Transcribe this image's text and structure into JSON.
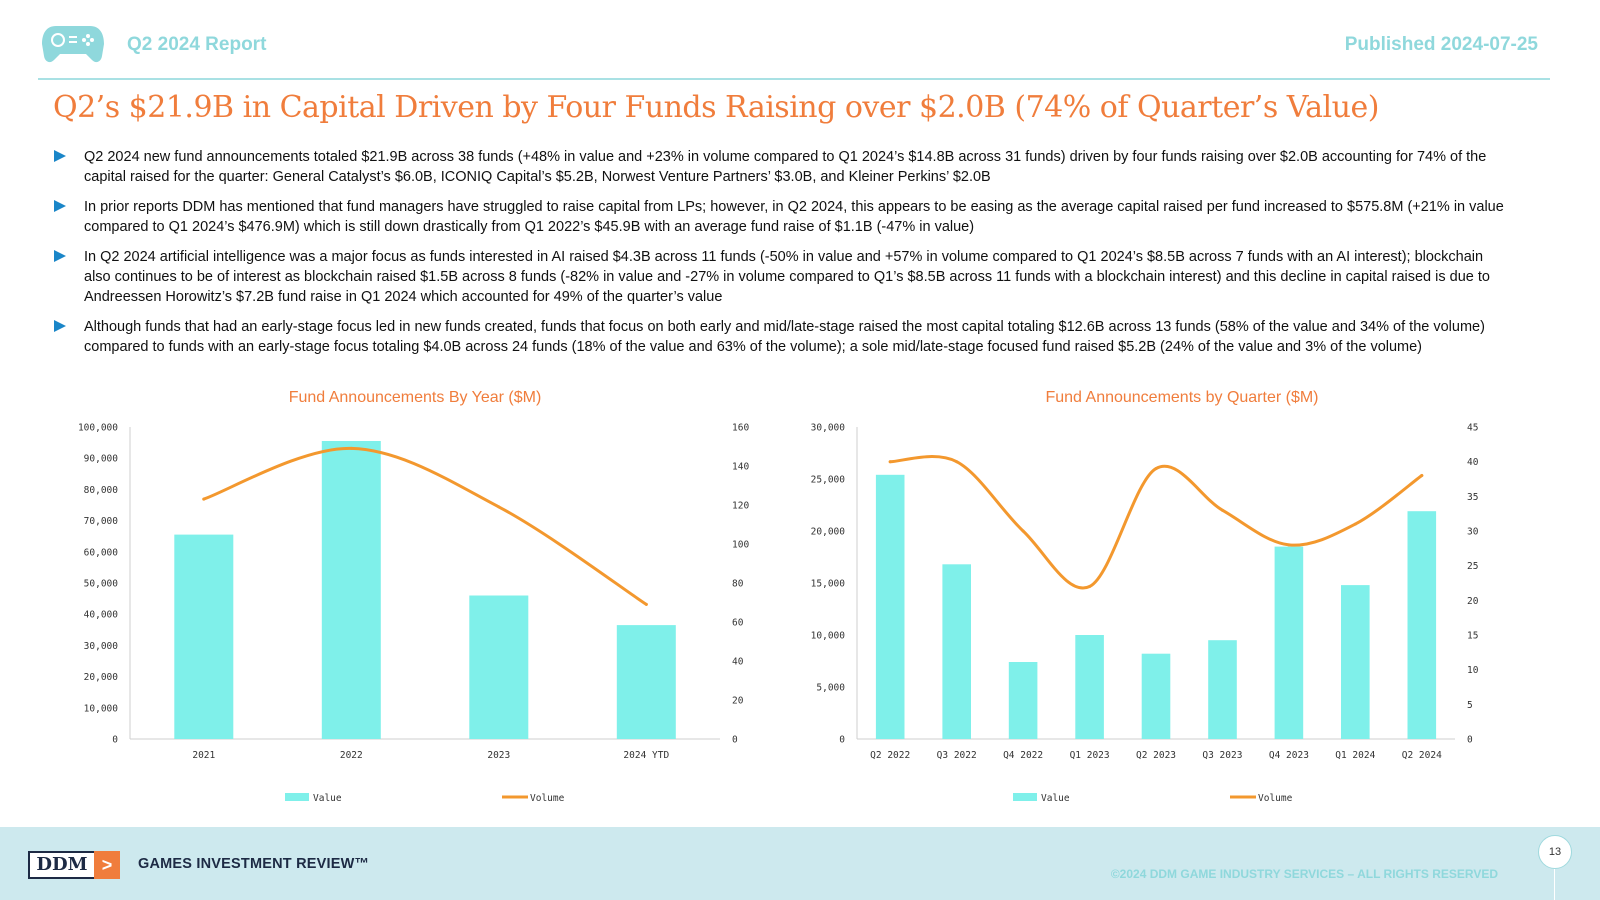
{
  "header": {
    "report_label": "Q2 2024 Report",
    "published": "Published 2024-07-25",
    "logo_icon": "gamepad-icon"
  },
  "title": "Q2’s $21.9B in Capital Driven by Four Funds Raising over $2.0B (74% of Quarter’s Value)",
  "bullets": [
    "Q2 2024 new fund announcements totaled $21.9B across 38 funds (+48% in value and +23% in volume compared to Q1 2024’s $14.8B across 31 funds) driven by four funds raising over $2.0B accounting for 74% of the capital raised for the quarter: General Catalyst’s $6.0B, ICONIQ Capital’s $5.2B, Norwest Venture Partners’ $3.0B, and Kleiner Perkins’ $2.0B",
    "In prior reports DDM has mentioned that fund managers have struggled to raise capital from LPs; however, in Q2 2024, this appears to be easing as the average capital raised per fund increased to $575.8M (+21% in value compared to Q1 2024’s $476.9M) which is still down drastically from Q1 2022’s $45.9B with an average fund raise of $1.1B (-47% in value)",
    "In Q2 2024 artificial intelligence was a major focus as funds interested in AI raised $4.3B across 11 funds (-50% in value and +57% in volume compared to Q1 2024’s $8.5B across 7 funds with an AI interest); blockchain also continues to be of interest as blockchain raised $1.5B across 8 funds (-82% in value and -27% in volume compared to Q1’s $8.5B across 11 funds with a blockchain interest) and this decline in capital raised is due to Andreessen Horowitz’s $7.2B fund raise in Q1 2024 which accounted for 49% of the quarter’s value",
    "Although funds that had an early-stage focus led in new funds created, funds that focus on both early and mid/late-stage raised the most capital totaling $12.6B across 13 funds (58% of the value and 34% of the volume) compared to funds with an early-stage focus totaling $4.0B across 24 funds (18% of the value and 63% of the volume); a sole mid/late-stage focused fund raised $5.2B (24% of the value and 3% of the volume)"
  ],
  "chart_data": [
    {
      "type": "bar",
      "title": "Fund Announcements By Year ($M)",
      "categories": [
        "2021",
        "2022",
        "2023",
        "2024 YTD"
      ],
      "series": [
        {
          "name": "Value",
          "type": "bar",
          "axis": "left",
          "color": "#7ff0ea",
          "values": [
            65500,
            95500,
            46000,
            36500
          ]
        },
        {
          "name": "Volume",
          "type": "line",
          "axis": "right",
          "color": "#f3982e",
          "values": [
            123,
            149,
            119,
            69
          ]
        }
      ],
      "y_left": {
        "min": 0,
        "max": 100000,
        "ticks": [
          "0",
          "10,000",
          "20,000",
          "30,000",
          "40,000",
          "50,000",
          "60,000",
          "70,000",
          "80,000",
          "90,000",
          "100,000"
        ]
      },
      "y_right": {
        "min": 0,
        "max": 160,
        "ticks": [
          "0",
          "20",
          "40",
          "60",
          "80",
          "100",
          "120",
          "140",
          "160"
        ]
      },
      "grid": false,
      "legend": "bottom"
    },
    {
      "type": "bar",
      "title": "Fund Announcements by Quarter ($M)",
      "categories": [
        "Q2 2022",
        "Q3 2022",
        "Q4 2022",
        "Q1 2023",
        "Q2 2023",
        "Q3 2023",
        "Q4 2023",
        "Q1 2024",
        "Q2 2024"
      ],
      "series": [
        {
          "name": "Value",
          "type": "bar",
          "axis": "left",
          "color": "#7ff0ea",
          "values": [
            25400,
            16800,
            7400,
            10000,
            8200,
            9500,
            18500,
            14800,
            21900
          ]
        },
        {
          "name": "Volume",
          "type": "line",
          "axis": "right",
          "color": "#f3982e",
          "values": [
            40,
            40,
            30,
            22,
            39,
            33,
            28,
            31,
            38
          ]
        }
      ],
      "y_left": {
        "min": 0,
        "max": 30000,
        "ticks": [
          "0",
          "5,000",
          "10,000",
          "15,000",
          "20,000",
          "25,000",
          "30,000"
        ]
      },
      "y_right": {
        "min": 0,
        "max": 45,
        "ticks": [
          "0",
          "5",
          "10",
          "15",
          "20",
          "25",
          "30",
          "35",
          "40",
          "45"
        ]
      },
      "grid": false,
      "legend": "bottom"
    }
  ],
  "footer": {
    "ddm_logo": "DDM",
    "ddm_arrow": ">",
    "brand": "GAMES INVESTMENT REVIEW™",
    "copyright": "©2024 DDM GAME INDUSTRY SERVICES – ALL RIGHTS RESERVED",
    "page_number": "13"
  }
}
